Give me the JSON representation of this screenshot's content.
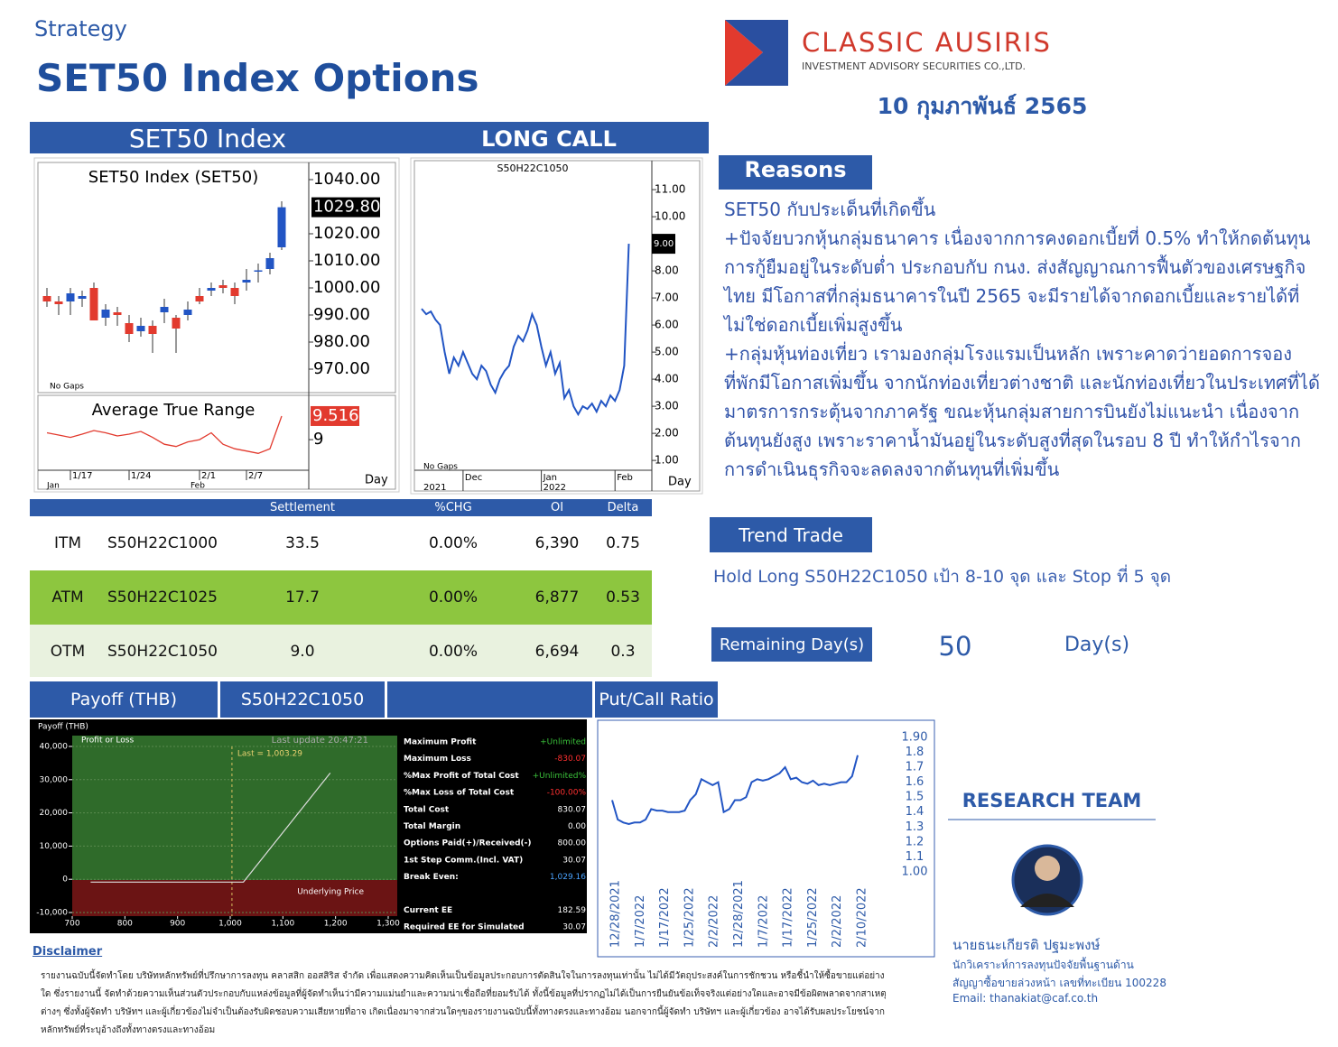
{
  "header": {
    "category": "Strategy",
    "title": "SET50 Index Options",
    "company": "CLASSIC AUSIRIS",
    "company_sub": "INVESTMENT ADVISORY SECURITIES CO.,LTD.",
    "date": "10 กุมภาพันธ์ 2565"
  },
  "panels": {
    "left_title": "SET50 Index",
    "right_title": "LONG CALL"
  },
  "chart_data": [
    {
      "type": "candlestick",
      "title": "SET50  Index  (SET50)",
      "note": "No Gaps",
      "ylim": [
        962,
        1046
      ],
      "yticks": [
        {
          "value": 1040,
          "label": "1040.00"
        },
        {
          "value": 1020,
          "label": "1020.00"
        },
        {
          "value": 1010,
          "label": "1010.00"
        },
        {
          "value": 1000,
          "label": "1000.00"
        },
        {
          "value": 990,
          "label": "990.00"
        },
        {
          "value": 980,
          "label": "980.00"
        },
        {
          "value": 970,
          "label": "970.00"
        }
      ],
      "last": {
        "value": 1029.8,
        "label": "1029.80"
      },
      "up_color": "#2255c4",
      "down_color": "#e23a2e",
      "open": [
        997,
        995,
        995,
        996,
        1000,
        989,
        991,
        987,
        984,
        986,
        991,
        989,
        990,
        997,
        999,
        1001,
        1000,
        1002,
        1006,
        1007,
        1015
      ],
      "high": [
        1000,
        997,
        1000,
        999,
        1002,
        994,
        993,
        990,
        989,
        988,
        996,
        990,
        995,
        1000,
        1002,
        1003,
        1002,
        1007,
        1009,
        1013,
        1032
      ],
      "low": [
        993,
        990,
        990,
        993,
        988,
        986,
        986,
        980,
        982,
        976,
        987,
        976,
        988,
        994,
        997,
        998,
        994,
        999,
        1002,
        1005,
        1014
      ],
      "close": [
        995,
        994,
        998,
        997,
        988,
        992,
        990,
        983,
        986,
        983,
        993,
        985,
        992,
        995,
        1000,
        1000,
        997,
        1003,
        1006.5,
        1011,
        1029.8
      ]
    },
    {
      "type": "line",
      "title": "Average  True  Range",
      "color": "#e23a2e",
      "ylim": [
        8.35,
        9.93
      ],
      "yticks": [
        9
      ],
      "last": {
        "value": 9.516,
        "label": "9.516"
      },
      "xlabel": "Day",
      "categories": [
        null,
        null,
        "1/17",
        null,
        null,
        null,
        null,
        "1/24",
        null,
        null,
        null,
        null,
        null,
        "2/1",
        null,
        null,
        null,
        "2/7",
        null,
        null,
        null
      ],
      "months": [
        "Jan",
        null,
        null,
        null,
        null,
        null,
        null,
        null,
        null,
        null,
        null,
        null,
        null,
        "Feb",
        null,
        null,
        null,
        null,
        null,
        null,
        null
      ],
      "values": [
        9.15,
        9.1,
        9.05,
        9.12,
        9.2,
        9.15,
        9.08,
        9.12,
        9.18,
        9.05,
        8.9,
        8.85,
        8.95,
        9.0,
        9.15,
        8.9,
        8.8,
        8.75,
        8.7,
        8.8,
        9.516
      ]
    },
    {
      "type": "line",
      "title": "S50H22C1050",
      "note": "No  Gaps",
      "color": "#2255c4",
      "ylim": [
        0.67,
        12.07
      ],
      "yticks": [
        {
          "value": 1,
          "label": "1.00"
        },
        {
          "value": 2,
          "label": "2.00"
        },
        {
          "value": 3,
          "label": "3.00"
        },
        {
          "value": 4,
          "label": "4.00"
        },
        {
          "value": 5,
          "label": "5.00"
        },
        {
          "value": 6,
          "label": "6.00"
        },
        {
          "value": 7,
          "label": "7.00"
        },
        {
          "value": 8,
          "label": "8.00"
        },
        {
          "value": 10,
          "label": "10.00"
        },
        {
          "value": 11,
          "label": "11.00"
        }
      ],
      "last": {
        "value": 9,
        "label": "9.00"
      },
      "xlabel": "Day",
      "categories": [
        null,
        null,
        null,
        null,
        null,
        null,
        null,
        null,
        null,
        "Dec",
        null,
        null,
        null,
        null,
        null,
        null,
        null,
        null,
        null,
        null,
        null,
        null,
        null,
        null,
        null,
        null,
        "Jan",
        null,
        null,
        null,
        null,
        null,
        null,
        null,
        null,
        null,
        null,
        null,
        null,
        null,
        null,
        null,
        "Feb",
        null,
        null,
        null
      ],
      "years": [
        "2021",
        null,
        null,
        null,
        null,
        null,
        null,
        null,
        null,
        null,
        null,
        null,
        null,
        null,
        null,
        null,
        null,
        null,
        null,
        null,
        null,
        null,
        null,
        null,
        null,
        null,
        "2022",
        null,
        null,
        null,
        null,
        null,
        null,
        null,
        null,
        null,
        null,
        null,
        null,
        null,
        null,
        null,
        null,
        null,
        null,
        null
      ],
      "values": [
        6.6,
        6.4,
        6.5,
        6.2,
        6.0,
        5.0,
        4.2,
        4.8,
        4.5,
        5.0,
        4.6,
        4.2,
        4.0,
        4.5,
        4.3,
        3.8,
        3.5,
        4.0,
        4.3,
        4.5,
        5.2,
        5.6,
        5.4,
        5.8,
        6.4,
        6.0,
        5.2,
        4.5,
        5.0,
        4.2,
        4.6,
        3.3,
        3.6,
        3.0,
        2.7,
        3.0,
        2.9,
        3.1,
        2.8,
        3.2,
        3.0,
        3.4,
        3.2,
        3.6,
        4.5,
        9.0
      ]
    },
    {
      "type": "line",
      "title": "Payoff (THB)",
      "ylabel": "Profit or Loss",
      "update": "Last update 20:47:21",
      "xlabel": "Underlying Price",
      "color": "#dddddd",
      "xlim": [
        700,
        1300
      ],
      "ylim": [
        -10000,
        40000
      ],
      "xticks": [
        700,
        800,
        900,
        {
          "value": 1000,
          "label": "1,000"
        },
        {
          "value": 1100,
          "label": "1,100"
        },
        {
          "value": 1200,
          "label": "1,200"
        },
        {
          "value": 1300,
          "label": "1,300"
        }
      ],
      "yticks": [
        {
          "value": -10000,
          "label": "-10,000"
        },
        0,
        {
          "value": 10000,
          "label": "10,000"
        },
        {
          "value": 20000,
          "label": "20,000"
        },
        {
          "value": 30000,
          "label": "30,000"
        },
        {
          "value": 40000,
          "label": "40,000"
        }
      ],
      "last": {
        "value": 1003.29,
        "label": "Last = 1,003.29"
      },
      "x": [
        735,
        1025,
        1190
      ],
      "values": [
        -830,
        -830,
        32000
      ]
    },
    {
      "type": "line",
      "color": "#2255c4",
      "ylim": [
        0.885,
        1.966
      ],
      "yticks": [
        {
          "value": 1,
          "label": "1.00"
        },
        1.1,
        1.2,
        1.3,
        1.4,
        1.5,
        1.6,
        1.7,
        1.8,
        {
          "value": 1.9,
          "label": "1.90"
        }
      ],
      "xtick_labels": [
        "12/28/2021",
        "1/7/2022",
        "1/17/2022",
        "1/25/2022",
        "2/2/2022",
        "12/28/2021",
        "1/7/2022",
        "1/17/2022",
        "1/25/2022",
        "2/2/2022",
        "2/10/2022"
      ],
      "values": [
        1.48,
        1.35,
        1.33,
        1.32,
        1.33,
        1.33,
        1.35,
        1.42,
        1.41,
        1.41,
        1.4,
        1.4,
        1.4,
        1.41,
        1.48,
        1.52,
        1.62,
        1.6,
        1.58,
        1.6,
        1.4,
        1.42,
        1.48,
        1.48,
        1.5,
        1.6,
        1.62,
        1.61,
        1.62,
        1.64,
        1.66,
        1.7,
        1.62,
        1.63,
        1.6,
        1.59,
        1.61,
        1.58,
        1.59,
        1.58,
        1.59,
        1.6,
        1.6,
        1.64,
        1.78
      ]
    }
  ],
  "table": {
    "headers": [
      "Settlement",
      "%CHG",
      "OI",
      "Delta"
    ],
    "rows": [
      [
        "ITM",
        "S50H22C1000",
        "33.5",
        "0.00%",
        "6,390",
        "0.75"
      ],
      [
        "ATM",
        "S50H22C1025",
        "17.7",
        "0.00%",
        "6,877",
        "0.53"
      ],
      [
        "OTM",
        "S50H22C1050",
        "9.0",
        "0.00%",
        "6,694",
        "0.3"
      ]
    ]
  },
  "reasons": {
    "title": "Reasons",
    "paragraphs": [
      "SET50 กับประเด็นที่เกิดขึ้น",
      "+ปัจจัยบวกหุ้นกลุ่มธนาคาร เนื่องจากการคงดอกเบี้ยที่ 0.5% ทำให้กดต้นทุนการกู้ยืมอยู่ในระดับต่ำ ประกอบกับ กนง. ส่งสัญญาณการฟื้นตัวของเศรษฐกิจไทย มีโอกาสที่กลุ่มธนาคารในปี 2565 จะมีรายได้จากดอกเบี้ยและรายได้ที่ไม่ใช่ดอกเบี้ยเพิ่มสูงขึ้น",
      "+กลุ่มหุ้นท่องเที่ยว เรามองกลุ่มโรงแรมเป็นหลัก เพราะคาดว่ายอดการจองที่พักมีโอกาสเพิ่มขึ้น จากนักท่องเที่ยวต่างชาติ และนักท่องเที่ยวในประเทศที่ได้มาตรการกระตุ้นจากภาครัฐ ขณะหุ้นกลุ่มสายการบินยังไม่แนะนำ เนื่องจากต้นทุนยังสูง เพราะราคาน้ำมันอยู่ในระดับสูงที่สุดในรอบ 8 ปี ทำให้กำไรจากการดำเนินธุรกิจจะลดลงจากต้นทุนที่เพิ่มขึ้น"
    ]
  },
  "trend": {
    "title": "Trend Trade",
    "text": "Hold Long S50H22C1050  เป้า 8-10 จุด และ Stop ที่ 5 จุด"
  },
  "remaining": {
    "label": "Remaining Day(s)",
    "value": "50",
    "unit": "Day(s)"
  },
  "tabs": {
    "payoff": "Payoff (THB)",
    "series": "S50H22C1050",
    "pcr": "Put/Call Ratio"
  },
  "payoff_metrics": [
    [
      "Maximum Profit",
      "+Unlimited"
    ],
    [
      "Maximum Loss",
      "-830.07"
    ],
    [
      "%Max Profit of Total Cost",
      "+Unlimited%"
    ],
    [
      "%Max Loss of Total Cost",
      "-100.00%"
    ],
    [
      "Total Cost",
      "830.07"
    ],
    [
      "Total Margin",
      "0.00"
    ],
    [
      "Options Paid(+)/Received(-)",
      "800.00"
    ],
    [
      "1st Step Comm.(Incl. VAT)",
      "30.07"
    ],
    [
      "Break Even:",
      "1,029.16"
    ],
    [
      "Current EE",
      "182.59"
    ],
    [
      "Required EE for Simulated",
      "30.07"
    ]
  ],
  "research": {
    "title": "RESEARCH TEAM",
    "name": "นายธนะเกียรติ ปฐมะพงษ์",
    "role": "นักวิเคราะห์การลงทุนปัจจัยพื้นฐานด้าน",
    "license": "สัญญาซื้อขายล่วงหน้า เลขที่ทะเบียน 100228",
    "email": "Email: thanakiat@caf.co.th"
  },
  "disclaimer": {
    "title": "Disclaimer",
    "text": "รายงานฉบับนี้จัดทำโดย บริษัทหลักทรัพย์ที่ปรึกษาการลงทุน คลาสสิก ออสสิริส จำกัด เพื่อแสดงความคิดเห็นเป็นข้อมูลประกอบการตัดสินใจในการลงทุนเท่านั้น ไม่ได้มีวัตถุประสงค์ในการชักชวน หรือชี้นำให้ซื้อขายแต่อย่างใด ซึ่งรายงานนี้ จัดทำด้วยความเห็นส่วนตัวประกอบกับแหล่งข้อมูลที่ผู้จัดทำเห็นว่ามีความแม่นยำและความน่าเชื่อถือที่ยอมรับได้ ทั้งนี้ข้อมูลที่ปรากฏไม่ได้เป็นการยืนยันข้อเท็จจริงแต่อย่างใดและอาจมีข้อผิดพลาดจากสาเหตุต่างๆ ซึ่งทั้งผู้จัดทำ บริษัทฯ และผู้เกี่ยวข้องไม่จำเป็นต้องรับผิดชอบความเสียหายที่อาจ เกิดเนื่องมาจากส่วนใดๆของรายงานฉบับนี้ทั้งทางตรงและทางอ้อม นอกจากนี้ผู้จัดทำ บริษัทฯ และผู้เกี่ยวข้อง อาจได้รับผลประโยชน์จากหลักทรัพย์ที่ระบุอ้างถึงทั้งทางตรงและทางอ้อม"
  }
}
